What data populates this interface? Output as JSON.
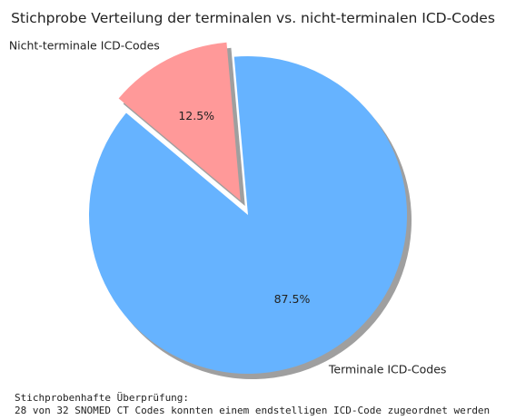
{
  "chart_data": {
    "type": "pie",
    "title": "Stichprobe Verteilung der terminalen vs. nicht-terminalen ICD-Codes",
    "slices": [
      {
        "label": "Terminale ICD-Codes",
        "value": 87.5,
        "pct_label": "87.5%",
        "color": "#66b3ff",
        "exploded": false
      },
      {
        "label": "Nicht-terminale ICD-Codes",
        "value": 12.5,
        "pct_label": "12.5%",
        "color": "#ff9999",
        "exploded": true
      }
    ],
    "start_angle_deg": 140,
    "shadow": true
  },
  "output": {
    "line1": "Stichprobenhafte Überprüfung:",
    "line2": "28 von 32 SNOMED CT Codes konnten einem endstelligen ICD-Code zugeordnet werden"
  }
}
